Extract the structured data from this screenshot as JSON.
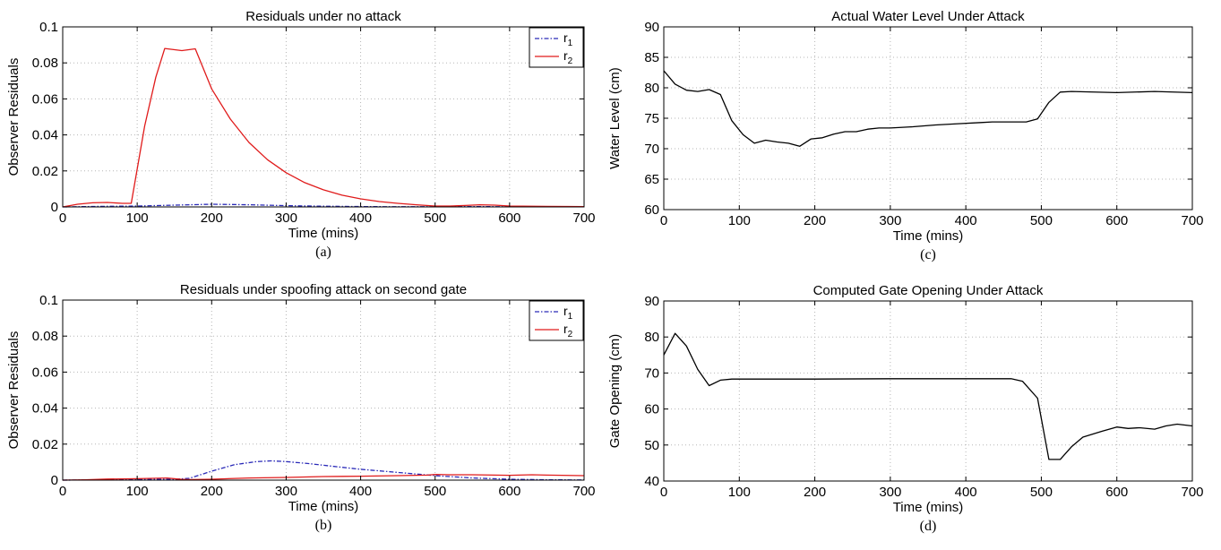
{
  "chart_data": [
    {
      "id": "a",
      "type": "line",
      "title": "Residuals under no attack",
      "caption": "(a)",
      "xlabel": "Time (mins)",
      "ylabel": "Observer Residuals",
      "xlim": [
        0,
        700
      ],
      "ylim": [
        0,
        0.1
      ],
      "xticks": [
        0,
        100,
        200,
        300,
        400,
        500,
        600,
        700
      ],
      "yticks": [
        0,
        0.02,
        0.04,
        0.06,
        0.08,
        0.1
      ],
      "grid": true,
      "legend": "top-right",
      "series": [
        {
          "name": "r1",
          "label_main": "r",
          "label_sub": "1",
          "color": "#2a2ab8",
          "style": "dashdot",
          "x": [
            0,
            50,
            100,
            150,
            200,
            250,
            300,
            350,
            400,
            450,
            500,
            550,
            600,
            650,
            700
          ],
          "y": [
            0,
            0.0003,
            0.0005,
            0.001,
            0.0015,
            0.0012,
            0.0007,
            0.0004,
            0.0002,
            0.0001,
            0.0001,
            0.0002,
            0.0001,
            0.0001,
            0.0001
          ]
        },
        {
          "name": "r2",
          "label_main": "r",
          "label_sub": "2",
          "color": "#e01b1b",
          "style": "solid",
          "x": [
            0,
            20,
            40,
            60,
            80,
            92,
            110,
            125,
            137,
            160,
            178,
            200,
            225,
            250,
            275,
            300,
            325,
            350,
            375,
            400,
            425,
            450,
            475,
            500,
            520,
            540,
            560,
            580,
            600,
            650,
            700
          ],
          "y": [
            0,
            0.0015,
            0.0023,
            0.0025,
            0.002,
            0.002,
            0.045,
            0.072,
            0.088,
            0.0868,
            0.0878,
            0.0655,
            0.0488,
            0.0358,
            0.0262,
            0.019,
            0.0135,
            0.0095,
            0.0065,
            0.0045,
            0.003,
            0.002,
            0.0012,
            0.0005,
            0.0005,
            0.0008,
            0.0012,
            0.001,
            0.0005,
            0.0003,
            0.0002
          ]
        }
      ]
    },
    {
      "id": "b",
      "type": "line",
      "title": "Residuals under spoofing attack on second gate",
      "caption": "(b)",
      "xlabel": "Time (mins)",
      "ylabel": "Observer Residuals",
      "xlim": [
        0,
        700
      ],
      "ylim": [
        0,
        0.1
      ],
      "xticks": [
        0,
        100,
        200,
        300,
        400,
        500,
        600,
        700
      ],
      "yticks": [
        0,
        0.02,
        0.04,
        0.06,
        0.08,
        0.1
      ],
      "grid": true,
      "legend": "top-right",
      "series": [
        {
          "name": "r1",
          "label_main": "r",
          "label_sub": "1",
          "color": "#2a2ab8",
          "style": "dashdot",
          "x": [
            0,
            50,
            100,
            150,
            170,
            200,
            230,
            260,
            280,
            300,
            330,
            360,
            400,
            450,
            500,
            550,
            600,
            650,
            700
          ],
          "y": [
            0,
            0.0002,
            0.0005,
            0.0005,
            0.001,
            0.005,
            0.0085,
            0.0103,
            0.0107,
            0.0103,
            0.0092,
            0.0078,
            0.006,
            0.0043,
            0.0025,
            0.0012,
            0.0005,
            0.0002,
            0.0001
          ]
        },
        {
          "name": "r2",
          "label_main": "r",
          "label_sub": "2",
          "color": "#e01b1b",
          "style": "solid",
          "x": [
            0,
            30,
            60,
            100,
            140,
            160,
            170,
            200,
            250,
            300,
            350,
            400,
            450,
            490,
            500,
            520,
            550,
            600,
            630,
            650,
            700
          ],
          "y": [
            0,
            0.0002,
            0.0006,
            0.0008,
            0.0012,
            0.0004,
            0.0003,
            0.0005,
            0.0012,
            0.0015,
            0.002,
            0.0022,
            0.0025,
            0.0028,
            0.0032,
            0.003,
            0.003,
            0.0027,
            0.003,
            0.0028,
            0.0025
          ]
        }
      ]
    },
    {
      "id": "c",
      "type": "line",
      "title": "Actual Water Level Under Attack",
      "caption": "(c)",
      "xlabel": "Time (mins)",
      "ylabel": "Water Level (cm)",
      "xlim": [
        0,
        700
      ],
      "ylim": [
        60,
        90
      ],
      "xticks": [
        0,
        100,
        200,
        300,
        400,
        500,
        600,
        700
      ],
      "yticks": [
        60,
        65,
        70,
        75,
        80,
        85,
        90
      ],
      "grid": true,
      "series": [
        {
          "color": "#000000",
          "style": "solid",
          "x": [
            0,
            15,
            30,
            45,
            60,
            75,
            90,
            105,
            120,
            135,
            150,
            165,
            180,
            195,
            210,
            225,
            240,
            255,
            270,
            285,
            300,
            330,
            360,
            390,
            420,
            435,
            450,
            480,
            495,
            510,
            525,
            540,
            600,
            650,
            700
          ],
          "y": [
            82.8,
            80.6,
            79.6,
            79.4,
            79.7,
            78.9,
            74.6,
            72.3,
            70.9,
            71.4,
            71.1,
            70.9,
            70.4,
            71.6,
            71.8,
            72.4,
            72.8,
            72.8,
            73.2,
            73.4,
            73.4,
            73.6,
            73.9,
            74.1,
            74.3,
            74.4,
            74.4,
            74.4,
            74.9,
            77.6,
            79.3,
            79.4,
            79.2,
            79.4,
            79.2
          ]
        }
      ]
    },
    {
      "id": "d",
      "type": "line",
      "title": "Computed Gate Opening Under Attack",
      "caption": "(d)",
      "xlabel": "Time (mins)",
      "ylabel": "Gate Opening (cm)",
      "xlim": [
        0,
        700
      ],
      "ylim": [
        40,
        90
      ],
      "xticks": [
        0,
        100,
        200,
        300,
        400,
        500,
        600,
        700
      ],
      "yticks": [
        40,
        50,
        60,
        70,
        80,
        90
      ],
      "grid": true,
      "series": [
        {
          "color": "#000000",
          "style": "solid",
          "x": [
            0,
            15,
            30,
            45,
            60,
            75,
            90,
            120,
            200,
            300,
            400,
            460,
            475,
            495,
            510,
            525,
            540,
            555,
            580,
            600,
            615,
            630,
            650,
            665,
            680,
            700
          ],
          "y": [
            75,
            81,
            77.5,
            71,
            66.5,
            68,
            68.3,
            68.3,
            68.3,
            68.4,
            68.4,
            68.4,
            67.7,
            63,
            46,
            46,
            49.5,
            52.2,
            53.8,
            55,
            54.6,
            54.8,
            54.4,
            55.3,
            55.8,
            55.3
          ]
        }
      ]
    }
  ]
}
